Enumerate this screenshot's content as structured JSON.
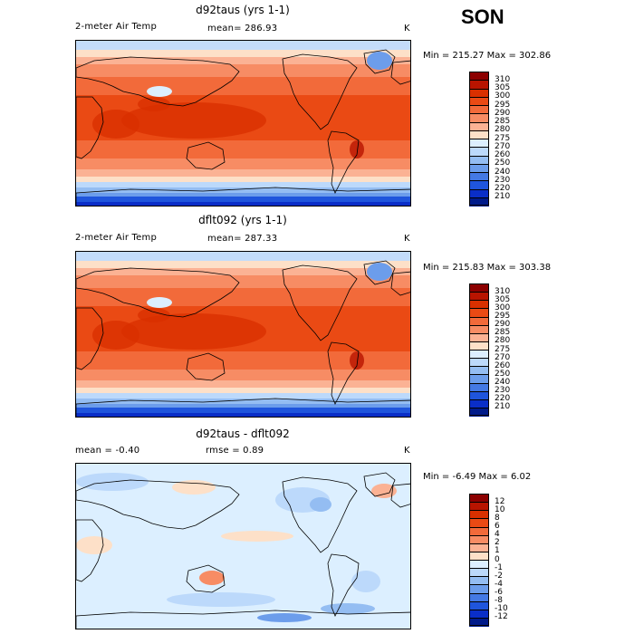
{
  "season": "SON",
  "units": "K",
  "panels": [
    {
      "title": "d92taus (yrs 1-1)",
      "variable": "2-meter Air Temp",
      "stats_left": "mean= 286.93",
      "stats_right": "",
      "minmax": "Min = 215.27 Max = 302.86",
      "type": "abs"
    },
    {
      "title": "dflt092 (yrs 1-1)",
      "variable": "2-meter Air Temp",
      "stats_left": "mean= 287.33",
      "stats_right": "",
      "minmax": "Min = 215.83 Max = 303.38",
      "type": "abs"
    },
    {
      "title": "d92taus - dflt092",
      "variable": "",
      "stats_left": "mean =   -0.40",
      "stats_right": "rmse =    0.89",
      "minmax": "Min =  -6.49 Max =   6.02",
      "type": "diff"
    }
  ],
  "colorbar_abs": {
    "labels": [
      "310",
      "305",
      "300",
      "295",
      "290",
      "285",
      "280",
      "275",
      "270",
      "260",
      "250",
      "240",
      "230",
      "220",
      "210"
    ],
    "colors": [
      "#8c0000",
      "#b81400",
      "#d93000",
      "#ea4a14",
      "#f26a3a",
      "#f78c64",
      "#fbb294",
      "#fde0c8",
      "#dcefff",
      "#bcd9fb",
      "#94bdf2",
      "#6c9deb",
      "#4479e4",
      "#1f55dc",
      "#0a2ec8",
      "#001a8a"
    ]
  },
  "colorbar_diff": {
    "labels": [
      "12",
      "10",
      "8",
      "6",
      "4",
      "2",
      "1",
      "0",
      "-1",
      "-2",
      "-4",
      "-6",
      "-8",
      "-10",
      "-12"
    ],
    "colors": [
      "#8c0000",
      "#b81400",
      "#d93000",
      "#ea4a14",
      "#f26a3a",
      "#f78c64",
      "#fbb294",
      "#fde0c8",
      "#dcefff",
      "#bcd9fb",
      "#94bdf2",
      "#6c9deb",
      "#4479e4",
      "#1f55dc",
      "#0a2ec8",
      "#001a8a"
    ]
  }
}
